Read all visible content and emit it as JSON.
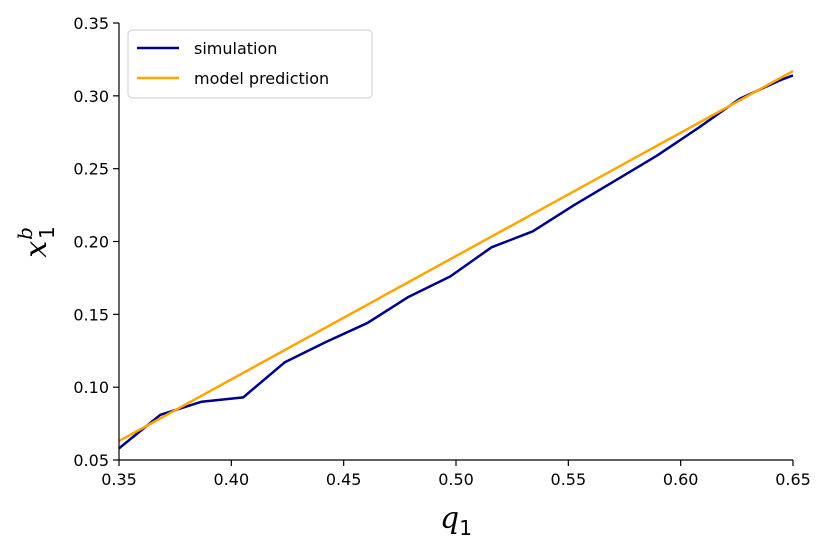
{
  "chart_data": {
    "type": "line",
    "xlabel": "q",
    "xlabel_sub": "1",
    "ylabel": "x",
    "ylabel_sub": "1",
    "ylabel_sup": "b",
    "xlim": [
      0.35,
      0.65
    ],
    "ylim": [
      0.05,
      0.35
    ],
    "x_ticks": [
      "0.35",
      "0.40",
      "0.45",
      "0.50",
      "0.55",
      "0.60",
      "0.65"
    ],
    "y_ticks": [
      "0.05",
      "0.10",
      "0.15",
      "0.20",
      "0.25",
      "0.30",
      "0.35"
    ],
    "grid": false,
    "legend_position": "top-left",
    "series": [
      {
        "name": "simulation",
        "color": "#00008b",
        "x": [
          0.35,
          0.3684,
          0.3868,
          0.4053,
          0.4237,
          0.4421,
          0.4605,
          0.4789,
          0.4974,
          0.5158,
          0.5342,
          0.5526,
          0.5711,
          0.5895,
          0.6079,
          0.6263,
          0.6447,
          0.65
        ],
        "y": [
          0.058,
          0.081,
          0.09,
          0.093,
          0.117,
          0.131,
          0.144,
          0.162,
          0.176,
          0.196,
          0.207,
          0.225,
          0.242,
          0.259,
          0.278,
          0.298,
          0.311,
          0.314
        ]
      },
      {
        "name": "model prediction",
        "color": "#ffa500",
        "x": [
          0.35,
          0.65
        ],
        "y": [
          0.063,
          0.317
        ]
      }
    ]
  }
}
